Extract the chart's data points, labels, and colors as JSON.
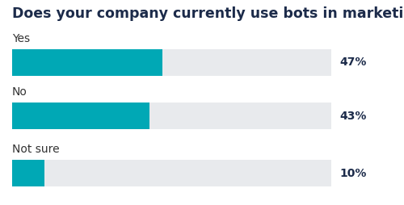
{
  "title": "Does your company currently use bots in marketing?",
  "categories": [
    "Yes",
    "No",
    "Not sure"
  ],
  "values": [
    47,
    43,
    10
  ],
  "labels": [
    "47%",
    "43%",
    "10%"
  ],
  "bar_color": "#00A8B5",
  "bg_bar_color": "#E8EAED",
  "title_color": "#1C2B4A",
  "label_color": "#1C2B4A",
  "category_color": "#333333",
  "title_fontsize": 12.5,
  "label_fontsize": 10,
  "category_fontsize": 10,
  "background_color": "#FFFFFF",
  "max_value": 100
}
